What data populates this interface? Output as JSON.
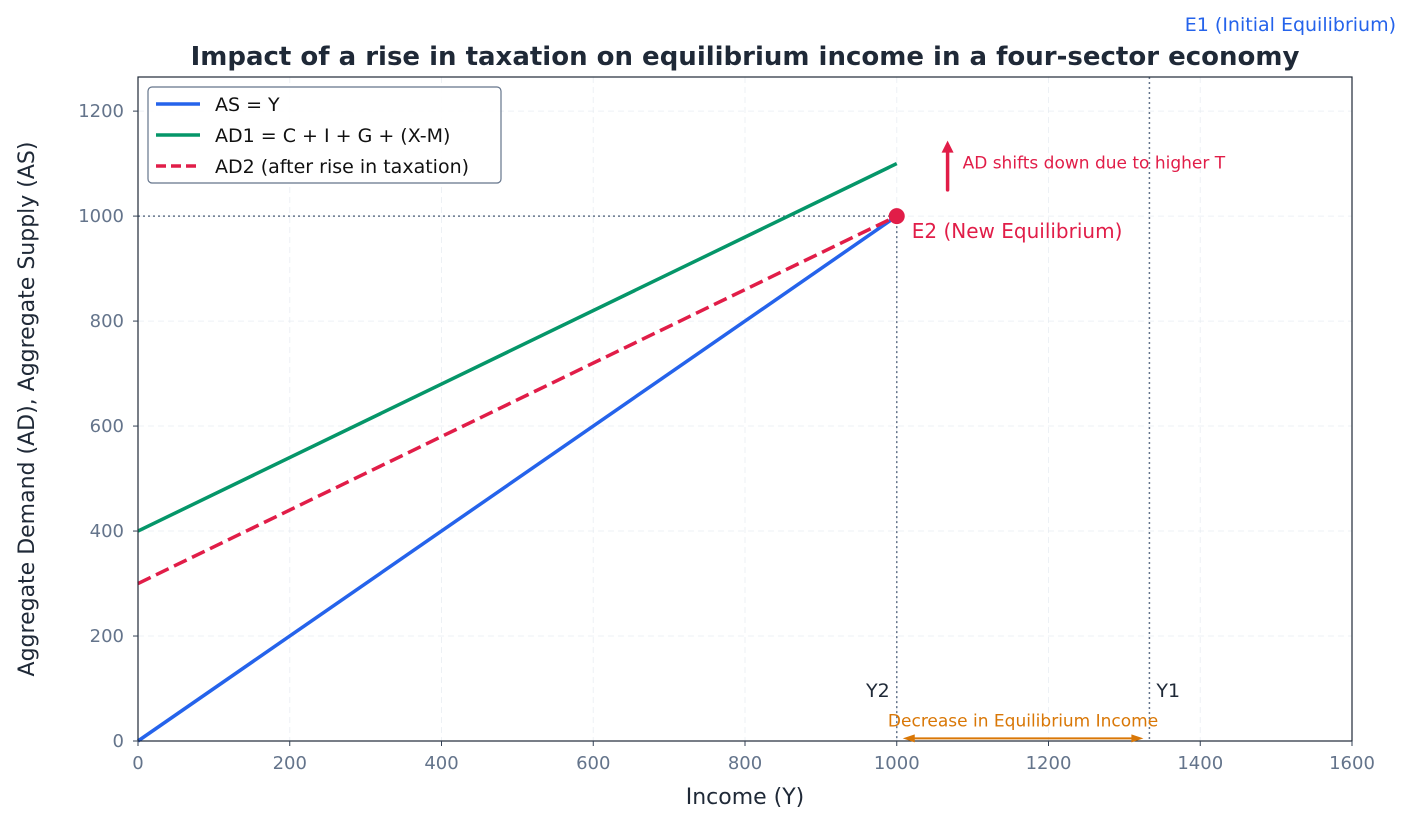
{
  "chart_data": {
    "type": "line",
    "title": "Impact of a rise in taxation on equilibrium income in a four-sector economy",
    "xlabel": "Income (Y)",
    "ylabel": "Aggregate Demand (AD), Aggregate Supply (AS)",
    "xlim": [
      0,
      1600
    ],
    "ylim": [
      0,
      1265
    ],
    "xticks": [
      0,
      200,
      400,
      600,
      800,
      1000,
      1200,
      1400,
      1600
    ],
    "yticks": [
      0,
      200,
      400,
      600,
      800,
      1000,
      1200
    ],
    "grid": true,
    "legend_position": "top-left",
    "series": [
      {
        "name": "AS = Y",
        "color": "#2563eb",
        "dash": false,
        "x": [
          0,
          1000
        ],
        "y": [
          0,
          1000
        ]
      },
      {
        "name": "AD1 = C + I + G + (X-M)",
        "color": "#059669",
        "dash": false,
        "x": [
          0,
          1000
        ],
        "y": [
          400,
          1100
        ]
      },
      {
        "name": "AD2 (after rise in taxation)",
        "color": "#e11d48",
        "dash": true,
        "x": [
          0,
          1000
        ],
        "y": [
          300,
          1000
        ]
      }
    ],
    "equilibria": {
      "new": {
        "label": "E2 (New Equilibrium)",
        "x": 1000,
        "y": 1000,
        "color": "#e11d48"
      },
      "initial": {
        "label": "E1 (Initial Equilibrium)",
        "x": 1333,
        "color": "#2563eb"
      }
    },
    "income_labels": {
      "y2": "Y2",
      "y1": "Y1"
    },
    "annotations": {
      "shift": {
        "text": "AD shifts down due to higher T",
        "color": "#e11d48",
        "x": 1067,
        "y_from": 1050,
        "y_to": 1140
      },
      "decrease": {
        "text": "Decrease in Equilibrium Income",
        "color": "#d97706",
        "x_from": 1000,
        "x_to": 1333,
        "y": 5
      }
    }
  }
}
